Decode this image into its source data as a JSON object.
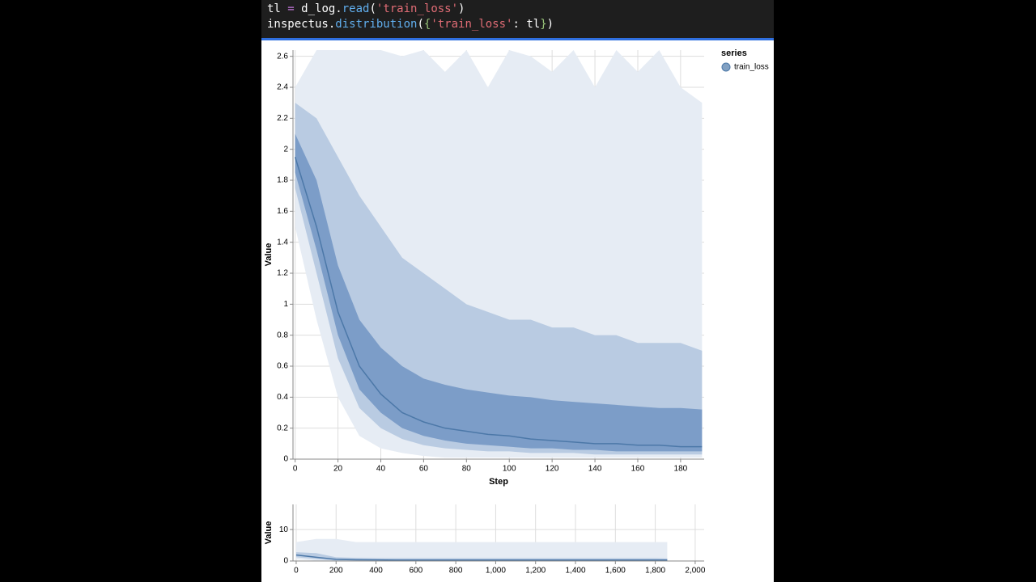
{
  "code": [
    [
      {
        "text": "tl",
        "color": "#ffffff"
      },
      {
        "text": " = ",
        "color": "#c678dd"
      },
      {
        "text": "d_log.",
        "color": "#ffffff"
      },
      {
        "text": "read",
        "color": "#61afef"
      },
      {
        "text": "(",
        "color": "#ffffff"
      },
      {
        "text": "'train_loss'",
        "color": "#e06c75"
      },
      {
        "text": ")",
        "color": "#ffffff"
      }
    ],
    [
      {
        "text": "inspectus.",
        "color": "#ffffff"
      },
      {
        "text": "distribution",
        "color": "#61afef"
      },
      {
        "text": "(",
        "color": "#ffffff"
      },
      {
        "text": "{",
        "color": "#98c379"
      },
      {
        "text": "'train_loss'",
        "color": "#e06c75"
      },
      {
        "text": ": tl",
        "color": "#ffffff"
      },
      {
        "text": "}",
        "color": "#98c379"
      },
      {
        "text": ")",
        "color": "#ffffff"
      }
    ]
  ],
  "legend": {
    "title": "series"
  },
  "chart_data": [
    {
      "type": "area",
      "xlabel": "Step",
      "ylabel": "Value",
      "x": [
        0,
        10,
        20,
        30,
        40,
        50,
        60,
        70,
        80,
        90,
        100,
        110,
        120,
        130,
        140,
        150,
        160,
        170,
        180,
        190
      ],
      "xlim": [
        -1,
        191
      ],
      "xticks": [
        0,
        20,
        40,
        60,
        80,
        100,
        120,
        140,
        160,
        180
      ],
      "ylim": [
        0,
        2.64
      ],
      "yticks": [
        0.0,
        0.2,
        0.4,
        0.6,
        0.8,
        1.0,
        1.2,
        1.4,
        1.6,
        1.8,
        2.0,
        2.2,
        2.4,
        2.6
      ],
      "grid": true,
      "series": [
        {
          "name": "train_loss",
          "color": "#4c78a8",
          "values": [
            1.95,
            1.5,
            0.95,
            0.6,
            0.42,
            0.3,
            0.24,
            0.2,
            0.18,
            0.16,
            0.15,
            0.13,
            0.12,
            0.11,
            0.1,
            0.1,
            0.09,
            0.09,
            0.08,
            0.08
          ],
          "bands": [
            {
              "lower": [
                1.5,
                0.9,
                0.4,
                0.15,
                0.07,
                0.04,
                0.02,
                0.01,
                0.01,
                0.01,
                0.01,
                0.01,
                0.01,
                0.01,
                0.01,
                0.01,
                0.01,
                0.01,
                0.01,
                0.01
              ],
              "upper": [
                2.4,
                2.64,
                2.64,
                2.64,
                2.64,
                2.6,
                2.64,
                2.5,
                2.64,
                2.4,
                2.64,
                2.6,
                2.5,
                2.64,
                2.4,
                2.64,
                2.5,
                2.64,
                2.4,
                2.3
              ]
            },
            {
              "lower": [
                1.75,
                1.2,
                0.65,
                0.33,
                0.2,
                0.13,
                0.09,
                0.07,
                0.06,
                0.05,
                0.05,
                0.04,
                0.04,
                0.04,
                0.03,
                0.03,
                0.03,
                0.03,
                0.03,
                0.03
              ],
              "upper": [
                2.3,
                2.2,
                1.95,
                1.7,
                1.5,
                1.3,
                1.2,
                1.1,
                1.0,
                0.95,
                0.9,
                0.9,
                0.85,
                0.85,
                0.8,
                0.8,
                0.75,
                0.75,
                0.75,
                0.7
              ]
            },
            {
              "lower": [
                1.85,
                1.35,
                0.8,
                0.45,
                0.3,
                0.2,
                0.15,
                0.12,
                0.1,
                0.09,
                0.08,
                0.07,
                0.07,
                0.06,
                0.06,
                0.05,
                0.05,
                0.05,
                0.05,
                0.05
              ],
              "upper": [
                2.1,
                1.8,
                1.25,
                0.9,
                0.72,
                0.6,
                0.52,
                0.48,
                0.45,
                0.43,
                0.41,
                0.4,
                0.38,
                0.37,
                0.36,
                0.35,
                0.34,
                0.33,
                0.33,
                0.32
              ]
            }
          ]
        }
      ]
    },
    {
      "type": "area",
      "ylabel": "Value",
      "x": [
        0,
        100,
        200,
        300,
        400,
        500,
        600,
        700,
        800,
        900,
        1000,
        1100,
        1200,
        1300,
        1400,
        1500,
        1600,
        1700,
        1800,
        1860
      ],
      "xlim": [
        -16,
        2045
      ],
      "xticks": [
        0,
        200,
        400,
        600,
        800,
        {
          "value": 1000,
          "label": "1,000"
        },
        {
          "value": 1200,
          "label": "1,200"
        },
        {
          "value": 1400,
          "label": "1,400"
        },
        {
          "value": 1600,
          "label": "1,600"
        },
        {
          "value": 1800,
          "label": "1,800"
        },
        {
          "value": 2000,
          "label": "2,000"
        }
      ],
      "ylim": [
        0,
        18
      ],
      "yticks": [
        0,
        10
      ],
      "grid": true,
      "series": [
        {
          "name": "train_loss",
          "color": "#4c78a8",
          "values": [
            1.9,
            1.2,
            0.5,
            0.4,
            0.35,
            0.3,
            0.3,
            0.3,
            0.3,
            0.3,
            0.3,
            0.3,
            0.3,
            0.3,
            0.3,
            0.3,
            0.3,
            0.3,
            0.3,
            0.3
          ],
          "bands": [
            {
              "lower": [
                0.5,
                0.1,
                0,
                0,
                0,
                0,
                0,
                0,
                0,
                0,
                0,
                0,
                0,
                0,
                0,
                0,
                0,
                0,
                0,
                0
              ],
              "upper": [
                6,
                7,
                7,
                6,
                6,
                6,
                6,
                6,
                6,
                6,
                6,
                6,
                6,
                6,
                6,
                6,
                6,
                6,
                6,
                6
              ]
            },
            {
              "lower": [
                1.2,
                0.6,
                0.1,
                0.05,
                0.05,
                0.05,
                0.05,
                0.05,
                0.05,
                0.05,
                0.05,
                0.05,
                0.05,
                0.05,
                0.05,
                0.05,
                0.05,
                0.05,
                0.05,
                0.05
              ],
              "upper": [
                2.8,
                2.5,
                1.2,
                1.0,
                0.9,
                0.9,
                0.9,
                0.9,
                0.9,
                0.9,
                0.9,
                0.9,
                0.9,
                0.9,
                0.9,
                0.9,
                0.9,
                0.9,
                0.9,
                0.8
              ]
            }
          ]
        }
      ]
    }
  ]
}
